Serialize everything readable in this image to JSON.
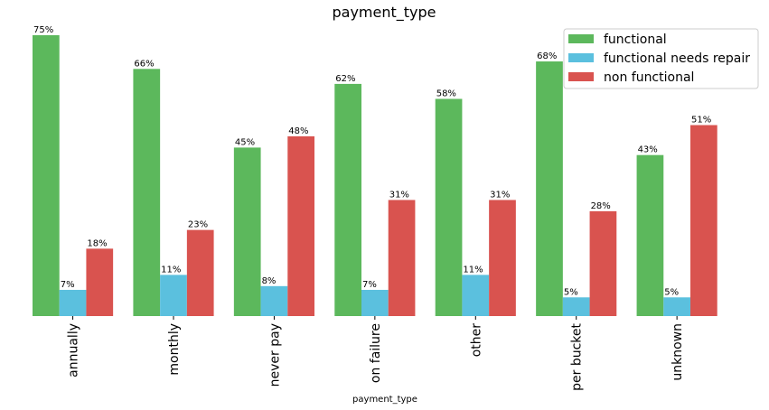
{
  "chart_data": {
    "type": "bar",
    "title": "payment_type",
    "xlabel": "payment_type",
    "ylabel": "",
    "ylim": [
      0,
      0.75
    ],
    "grid": false,
    "legend_position": "top-right",
    "categories": [
      "annually",
      "monthly",
      "never pay",
      "on failure",
      "other",
      "per bucket",
      "unknown"
    ],
    "series": [
      {
        "name": "functional",
        "color": "#5cb85c",
        "values": [
          0.75,
          0.66,
          0.45,
          0.62,
          0.58,
          0.68,
          0.43
        ],
        "labels": [
          "75%",
          "66%",
          "45%",
          "62%",
          "58%",
          "68%",
          "43%"
        ]
      },
      {
        "name": "functional needs repair",
        "color": "#5bc0de",
        "values": [
          0.07,
          0.11,
          0.08,
          0.07,
          0.11,
          0.05,
          0.05
        ],
        "labels": [
          "7%",
          "11%",
          "8%",
          "7%",
          "11%",
          "5%",
          "5%"
        ]
      },
      {
        "name": "non functional",
        "color": "#d9534f",
        "values": [
          0.18,
          0.23,
          0.48,
          0.31,
          0.31,
          0.28,
          0.51
        ],
        "labels": [
          "18%",
          "23%",
          "48%",
          "31%",
          "31%",
          "28%",
          "51%"
        ]
      }
    ]
  }
}
